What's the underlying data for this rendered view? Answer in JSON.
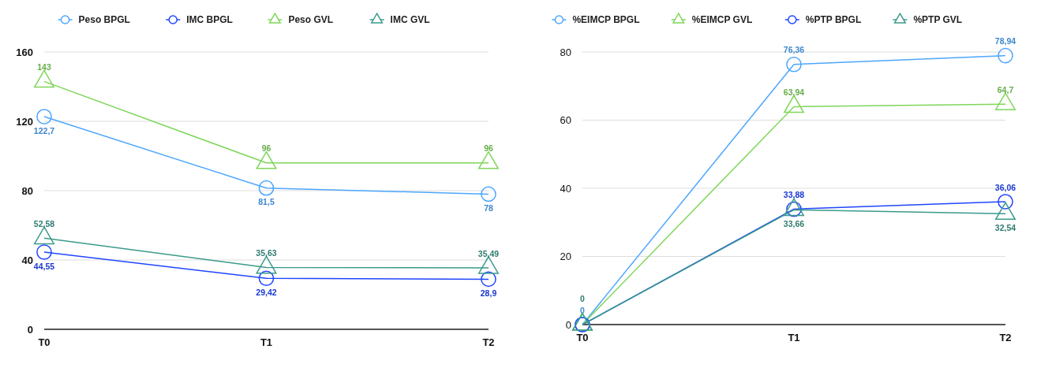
{
  "chart_data": [
    {
      "type": "line",
      "categories": [
        "T0",
        "T1",
        "T2"
      ],
      "ylim": [
        0,
        160
      ],
      "yticks": [
        0,
        40,
        80,
        120,
        160
      ],
      "grid": "y",
      "legend": "top",
      "line_style": "solid",
      "series": [
        {
          "name": "Peso BPGL",
          "color": "#4da6ff",
          "marker": "circle",
          "values": [
            122.7,
            81.5,
            78
          ],
          "value_labels": [
            "122,7",
            "81,5",
            "78"
          ]
        },
        {
          "name": "IMC BPGL",
          "color": "#1f45ff",
          "marker": "circle",
          "values": [
            44.55,
            29.42,
            28.9
          ],
          "value_labels": [
            "44,55",
            "29,42",
            "28,9"
          ]
        },
        {
          "name": "Peso GVL",
          "color": "#7fd65a",
          "marker": "triangle",
          "values": [
            143,
            96,
            96
          ],
          "value_labels": [
            "143",
            "96",
            "96"
          ]
        },
        {
          "name": "IMC GVL",
          "color": "#3a9a8c",
          "marker": "triangle",
          "values": [
            52.58,
            35.63,
            35.49
          ],
          "value_labels": [
            "52,58",
            "35,63",
            "35,49"
          ]
        }
      ]
    },
    {
      "type": "line",
      "categories": [
        "T0",
        "T1",
        "T2"
      ],
      "ylim": [
        0,
        80
      ],
      "yticks": [
        0,
        20,
        40,
        60,
        80
      ],
      "grid": "y",
      "legend": "top",
      "line_style": "solid",
      "series": [
        {
          "name": "%EIMCP BPGL",
          "color": "#4da6ff",
          "marker": "circle",
          "values": [
            0,
            76.36,
            78.94
          ],
          "value_labels": [
            "0",
            "76,36",
            "78,94"
          ]
        },
        {
          "name": "%EIMCP GVL",
          "color": "#7fd65a",
          "marker": "triangle",
          "values": [
            0,
            63.94,
            64.7
          ],
          "value_labels": [
            null,
            "63,94",
            "64,7"
          ]
        },
        {
          "name": "%PTP BPGL",
          "color": "#1f45ff",
          "marker": "circle",
          "values": [
            0,
            33.88,
            36.06
          ],
          "value_labels": [
            null,
            "33,88",
            "36,06"
          ]
        },
        {
          "name": "%PTP GVL",
          "color": "#3a9a8c",
          "marker": "triangle",
          "values": [
            0,
            33.66,
            32.54
          ],
          "value_labels": [
            "0",
            "33,66",
            "32,54"
          ]
        }
      ]
    }
  ]
}
